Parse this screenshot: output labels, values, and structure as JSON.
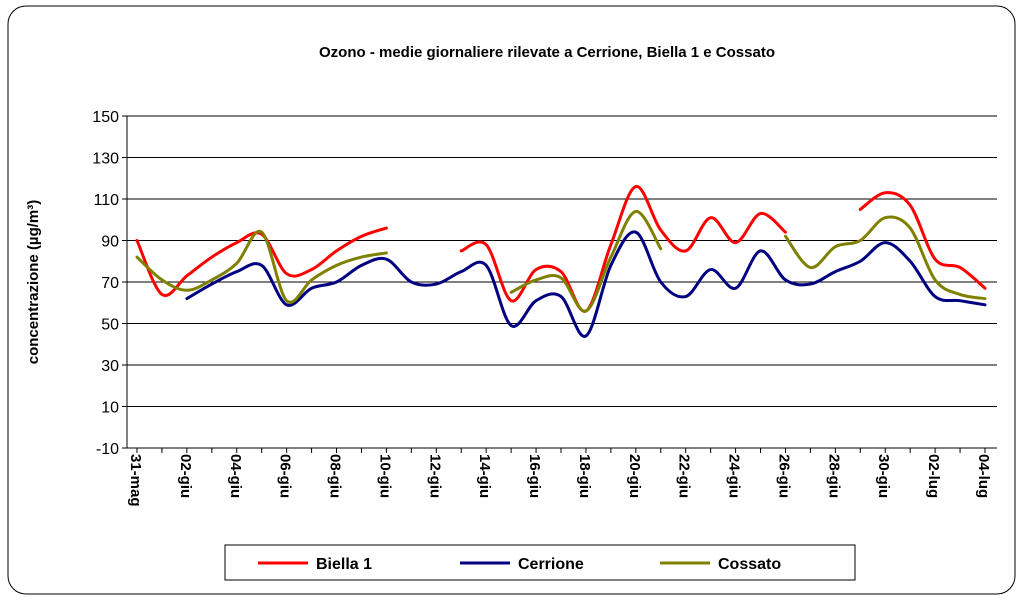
{
  "chart_data": {
    "type": "line",
    "title": "Ozono - medie giornaliere rilevate a Cerrione,  Biella 1 e Cossato",
    "y_label": "concentrazione (µg/m³)",
    "categories": [
      "31-mag",
      null,
      "02-giu",
      null,
      "04-giu",
      null,
      "06-giu",
      null,
      "08-giu",
      null,
      "10-giu",
      null,
      "12-giu",
      null,
      "14-giu",
      null,
      "16-giu",
      null,
      "18-giu",
      null,
      "20-giu",
      null,
      "22-giu",
      null,
      "24-giu",
      null,
      "26-giu",
      null,
      "28-giu",
      null,
      "30-giu",
      null,
      "02-lug",
      null,
      "04-lug"
    ],
    "series": [
      {
        "name": "Biella 1",
        "color": "#ff0000",
        "values": [
          90,
          64,
          73,
          82,
          89,
          93,
          74,
          76,
          85,
          92,
          96,
          null,
          null,
          85,
          88,
          61,
          76,
          75,
          56,
          88,
          116,
          95,
          85,
          101,
          89,
          103,
          94,
          null,
          null,
          105,
          113,
          107,
          81,
          77,
          67
        ]
      },
      {
        "name": "Cerrione",
        "color": "#000080",
        "values": [
          null,
          null,
          62,
          69,
          75,
          78,
          59,
          67,
          70,
          78,
          81,
          70,
          69,
          75,
          78,
          49,
          61,
          63,
          44,
          78,
          94,
          70,
          63,
          76,
          67,
          85,
          71,
          69,
          75,
          80,
          89,
          80,
          63,
          61,
          59
        ]
      },
      {
        "name": "Cossato",
        "color": "#808000",
        "values": [
          82,
          71,
          66,
          71,
          79,
          94,
          61,
          71,
          78,
          82,
          84,
          null,
          null,
          null,
          null,
          65,
          71,
          72,
          56,
          82,
          104,
          86,
          null,
          null,
          null,
          null,
          92,
          77,
          87,
          90,
          101,
          96,
          71,
          64,
          62
        ]
      }
    ],
    "ylim": [
      -10,
      150
    ],
    "yticks": [
      -10,
      10,
      30,
      50,
      70,
      90,
      110,
      130,
      150
    ],
    "grid": true,
    "legend": "bottom"
  }
}
